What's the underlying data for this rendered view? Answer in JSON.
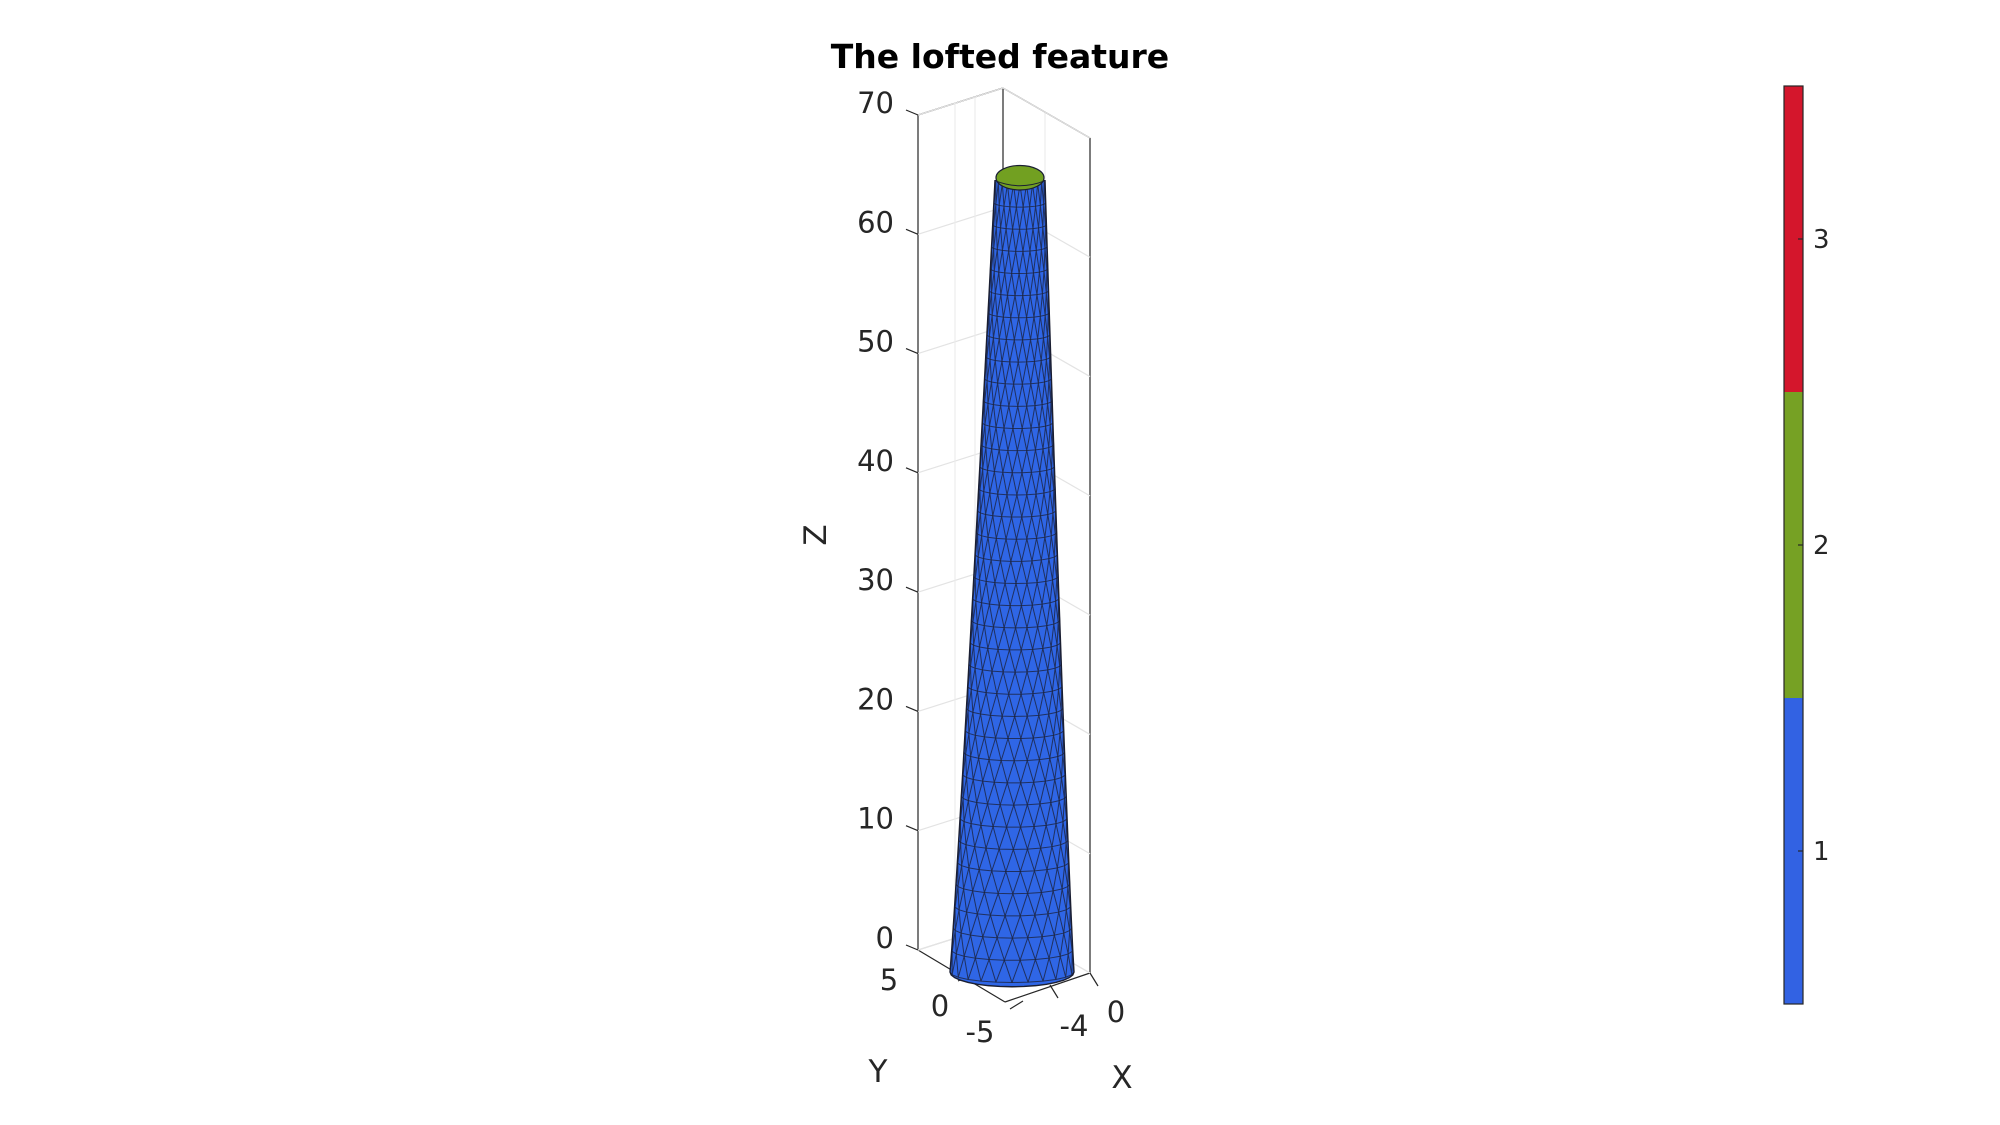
{
  "chart_data": {
    "type": "surface3d",
    "title": "The lofted feature",
    "xlabel": "X",
    "ylabel": "Y",
    "zlabel": "Z",
    "zticks": [
      "0",
      "10",
      "20",
      "30",
      "40",
      "50",
      "60",
      "70"
    ],
    "zlim": [
      0,
      70
    ],
    "xticks": [
      "-4",
      "0"
    ],
    "yticks": [
      "5",
      "0",
      "-5"
    ],
    "grid": true,
    "surface": {
      "shape": "tapered loft",
      "z_range": [
        0,
        66
      ],
      "base_radius": 6,
      "top_radius": 3,
      "rings": 36,
      "segments_visible": 12,
      "side_color": "#2f66e6",
      "cap_color": "#72a021",
      "edge_color": "#1b1f33"
    },
    "colorbar": {
      "ticks": [
        "1",
        "2",
        "3"
      ],
      "range": [
        0.5,
        3.5
      ],
      "levels": [
        {
          "value": 1,
          "color": "#3262e3"
        },
        {
          "value": 2,
          "color": "#76a124"
        },
        {
          "value": 3,
          "color": "#d4162c"
        }
      ]
    }
  }
}
